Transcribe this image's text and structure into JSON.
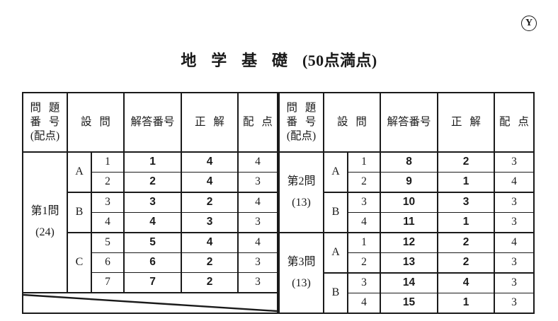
{
  "page": {
    "circle_mark": "Y",
    "title": {
      "subject": "地学基礎",
      "points_total": "(50点満点)"
    }
  },
  "table_headers": {
    "question": [
      "問 題",
      "番 号",
      "(配点)"
    ],
    "setsumon": "設 問",
    "answer_number": "解答番号",
    "correct": "正 解",
    "points": "配 点"
  },
  "tables": [
    {
      "id": "left",
      "diagonal_filler": true,
      "groups": [
        {
          "title": "第1問",
          "points_label": "(24)",
          "subgroups": [
            {
              "letter": "A",
              "rows": [
                {
                  "sub": "1",
                  "ans": "1",
                  "correct": "4",
                  "pts": "4"
                },
                {
                  "sub": "2",
                  "ans": "2",
                  "correct": "4",
                  "pts": "3"
                }
              ]
            },
            {
              "letter": "B",
              "rows": [
                {
                  "sub": "3",
                  "ans": "3",
                  "correct": "2",
                  "pts": "4"
                },
                {
                  "sub": "4",
                  "ans": "4",
                  "correct": "3",
                  "pts": "3"
                }
              ]
            },
            {
              "letter": "C",
              "rows": [
                {
                  "sub": "5",
                  "ans": "5",
                  "correct": "4",
                  "pts": "4"
                },
                {
                  "sub": "6",
                  "ans": "6",
                  "correct": "2",
                  "pts": "3"
                },
                {
                  "sub": "7",
                  "ans": "7",
                  "correct": "2",
                  "pts": "3"
                }
              ]
            }
          ]
        }
      ]
    },
    {
      "id": "right",
      "diagonal_filler": false,
      "groups": [
        {
          "title": "第2問",
          "points_label": "(13)",
          "subgroups": [
            {
              "letter": "A",
              "rows": [
                {
                  "sub": "1",
                  "ans": "8",
                  "correct": "2",
                  "pts": "3"
                },
                {
                  "sub": "2",
                  "ans": "9",
                  "correct": "1",
                  "pts": "4"
                }
              ]
            },
            {
              "letter": "B",
              "rows": [
                {
                  "sub": "3",
                  "ans": "10",
                  "correct": "3",
                  "pts": "3"
                },
                {
                  "sub": "4",
                  "ans": "11",
                  "correct": "1",
                  "pts": "3"
                }
              ]
            }
          ]
        },
        {
          "title": "第3問",
          "points_label": "(13)",
          "subgroups": [
            {
              "letter": "A",
              "rows": [
                {
                  "sub": "1",
                  "ans": "12",
                  "correct": "2",
                  "pts": "4"
                },
                {
                  "sub": "2",
                  "ans": "13",
                  "correct": "2",
                  "pts": "3"
                }
              ]
            },
            {
              "letter": "B",
              "rows": [
                {
                  "sub": "3",
                  "ans": "14",
                  "correct": "4",
                  "pts": "3"
                },
                {
                  "sub": "4",
                  "ans": "15",
                  "correct": "1",
                  "pts": "3"
                }
              ]
            }
          ]
        }
      ]
    }
  ]
}
